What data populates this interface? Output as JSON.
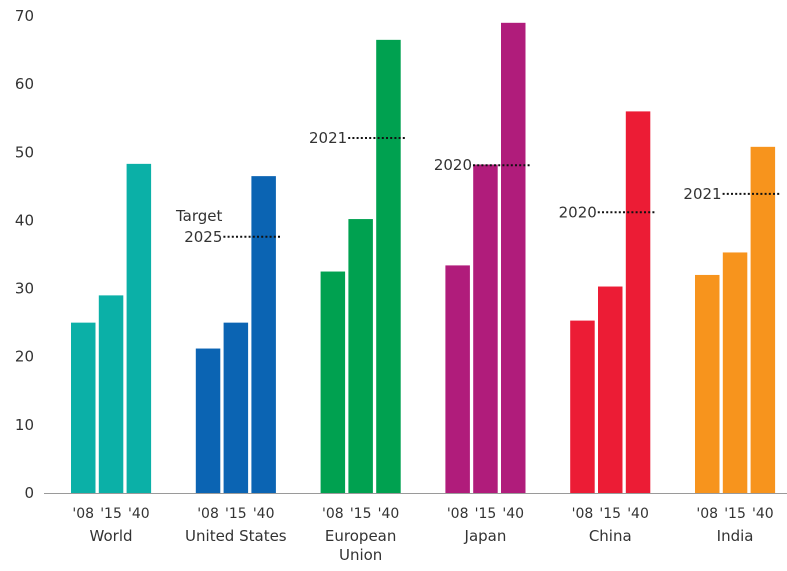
{
  "chart_data": {
    "type": "bar",
    "title": "",
    "xlabel": "",
    "ylabel": "",
    "ylim": [
      0,
      70
    ],
    "yticks": [
      0,
      10,
      20,
      30,
      40,
      50,
      60,
      70
    ],
    "grid": false,
    "legend": "none",
    "tick_labels": [
      "'08",
      "'15",
      "'40"
    ],
    "groups": [
      {
        "name": "World",
        "label_lines": [
          "World"
        ],
        "color": "#0BB0A7",
        "values": [
          25,
          29,
          48.3
        ]
      },
      {
        "name": "United States",
        "label_lines": [
          "United States"
        ],
        "color": "#0B64B3",
        "values": [
          21.2,
          25,
          46.5
        ],
        "annotation": {
          "lines": [
            "Target",
            "2025"
          ],
          "value": 37.6
        }
      },
      {
        "name": "European Union",
        "label_lines": [
          "European",
          "Union"
        ],
        "color": "#00A150",
        "values": [
          32.5,
          40.2,
          66.5
        ],
        "annotation": {
          "lines": [
            "2021"
          ],
          "value": 52.1
        }
      },
      {
        "name": "Japan",
        "label_lines": [
          "Japan"
        ],
        "color": "#B01C7B",
        "values": [
          33.4,
          48.2,
          69
        ],
        "annotation": {
          "lines": [
            "2020"
          ],
          "value": 48.1
        }
      },
      {
        "name": "China",
        "label_lines": [
          "China"
        ],
        "color": "#EC1C35",
        "values": [
          25.3,
          30.3,
          56
        ],
        "annotation": {
          "lines": [
            "2020"
          ],
          "value": 41.2
        }
      },
      {
        "name": "India",
        "label_lines": [
          "India"
        ],
        "color": "#F7941D",
        "values": [
          32,
          35.3,
          50.8
        ],
        "annotation": {
          "lines": [
            "2021"
          ],
          "value": 43.9
        }
      }
    ]
  }
}
